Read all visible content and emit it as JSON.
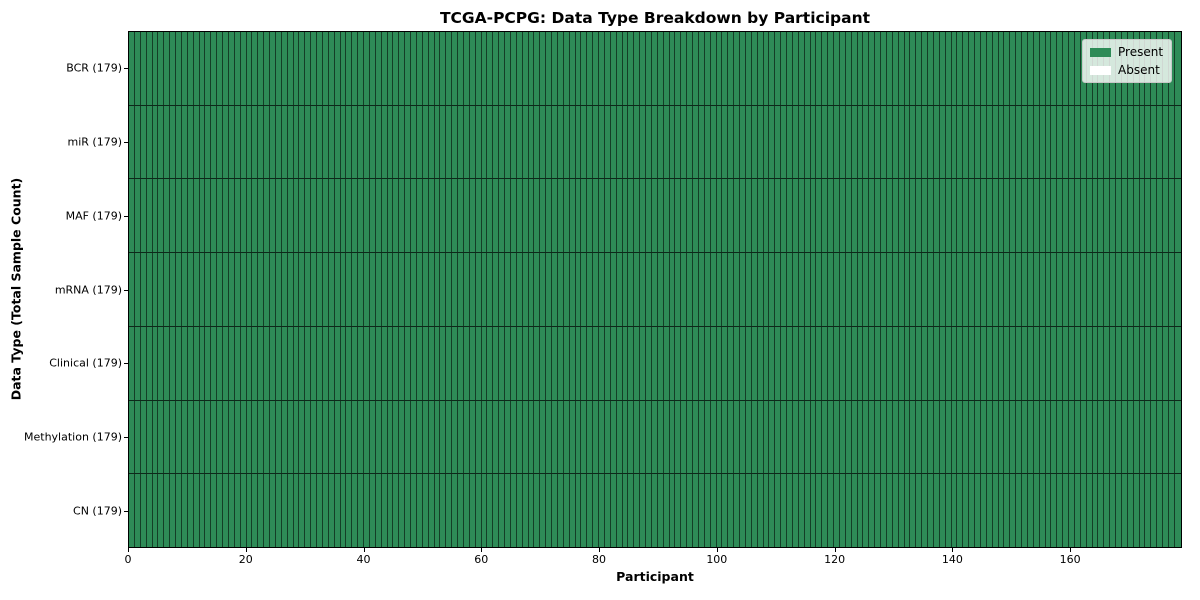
{
  "chart_data": {
    "type": "heatmap",
    "title": "TCGA-PCPG: Data Type Breakdown by Participant",
    "xlabel": "Participant",
    "ylabel": "Data Type (Total Sample Count)",
    "x_ticks": [
      0,
      20,
      40,
      60,
      80,
      100,
      120,
      140,
      160
    ],
    "x_range": [
      0,
      179
    ],
    "participants": 179,
    "grid": "cell-edges",
    "rows": [
      {
        "label": "BCR (179)",
        "data_type": "BCR",
        "total_samples": 179,
        "present_count": 179,
        "absent_count": 0
      },
      {
        "label": "miR (179)",
        "data_type": "miR",
        "total_samples": 179,
        "present_count": 179,
        "absent_count": 0
      },
      {
        "label": "MAF (179)",
        "data_type": "MAF",
        "total_samples": 179,
        "present_count": 179,
        "absent_count": 0
      },
      {
        "label": "mRNA (179)",
        "data_type": "mRNA",
        "total_samples": 179,
        "present_count": 179,
        "absent_count": 0
      },
      {
        "label": "Clinical (179)",
        "data_type": "Clinical",
        "total_samples": 179,
        "present_count": 179,
        "absent_count": 0
      },
      {
        "label": "Methylation (179)",
        "data_type": "Methylation",
        "total_samples": 179,
        "present_count": 179,
        "absent_count": 0
      },
      {
        "label": "CN (179)",
        "data_type": "CN",
        "total_samples": 179,
        "present_count": 179,
        "absent_count": 0
      }
    ],
    "legend": {
      "position": "upper right",
      "entries": [
        {
          "label": "Present",
          "color": "#2e8b57"
        },
        {
          "label": "Absent",
          "color": "#ffffff"
        }
      ]
    },
    "colors": {
      "present": "#2e8b57",
      "absent": "#ffffff",
      "cell_edge": "rgba(0,0,0,0.55)",
      "row_separator": "rgba(0,0,0,0.7)",
      "spine": "#000000"
    }
  }
}
